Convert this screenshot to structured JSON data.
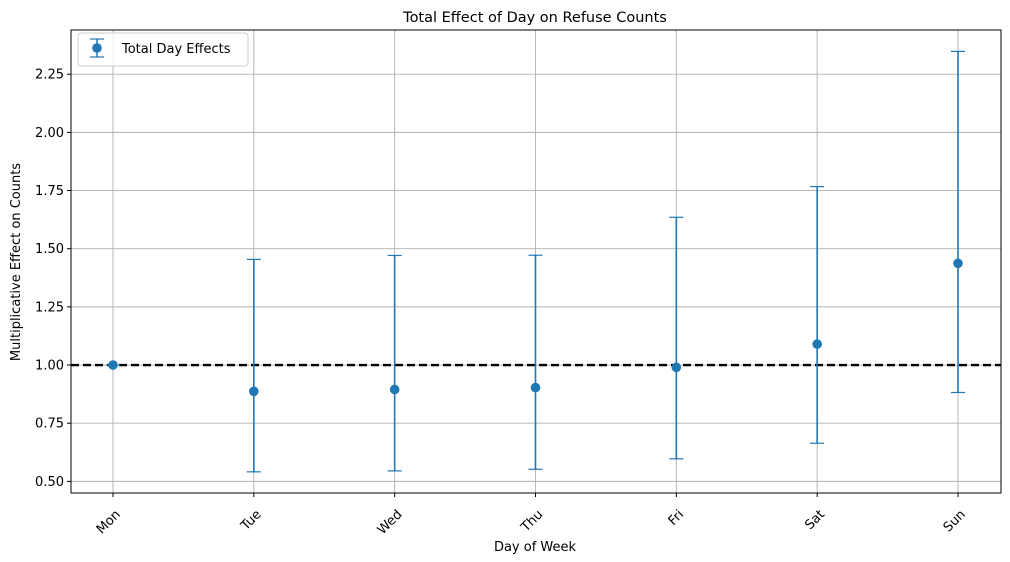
{
  "chart_data": {
    "type": "scatter",
    "title": "Total Effect of Day on Refuse Counts",
    "xlabel": "Day of Week",
    "ylabel": "Multiplicative Effect on Counts",
    "categories": [
      "Mon",
      "Tue",
      "Wed",
      "Thu",
      "Fri",
      "Sat",
      "Sun"
    ],
    "series": [
      {
        "name": "Total Day Effects",
        "values": [
          1.0,
          0.887,
          0.895,
          0.903,
          0.99,
          1.09,
          1.437
        ],
        "lower": [
          1.0,
          0.541,
          0.545,
          0.552,
          0.597,
          0.664,
          0.882
        ],
        "upper": [
          1.0,
          1.454,
          1.471,
          1.472,
          1.635,
          1.767,
          2.348
        ]
      }
    ],
    "reference_line": 1.0,
    "ylim": [
      0.45,
      2.44
    ],
    "yticks": [
      "0.50",
      "0.75",
      "1.00",
      "1.25",
      "1.50",
      "1.75",
      "2.00",
      "2.25"
    ],
    "ytick_values": [
      0.5,
      0.75,
      1.0,
      1.25,
      1.5,
      1.75,
      2.0,
      2.25
    ],
    "grid": true,
    "legend_position": "top-left",
    "colors": {
      "series": "#1f77b4",
      "reference": "#000000",
      "grid": "#b0b0b0"
    }
  }
}
